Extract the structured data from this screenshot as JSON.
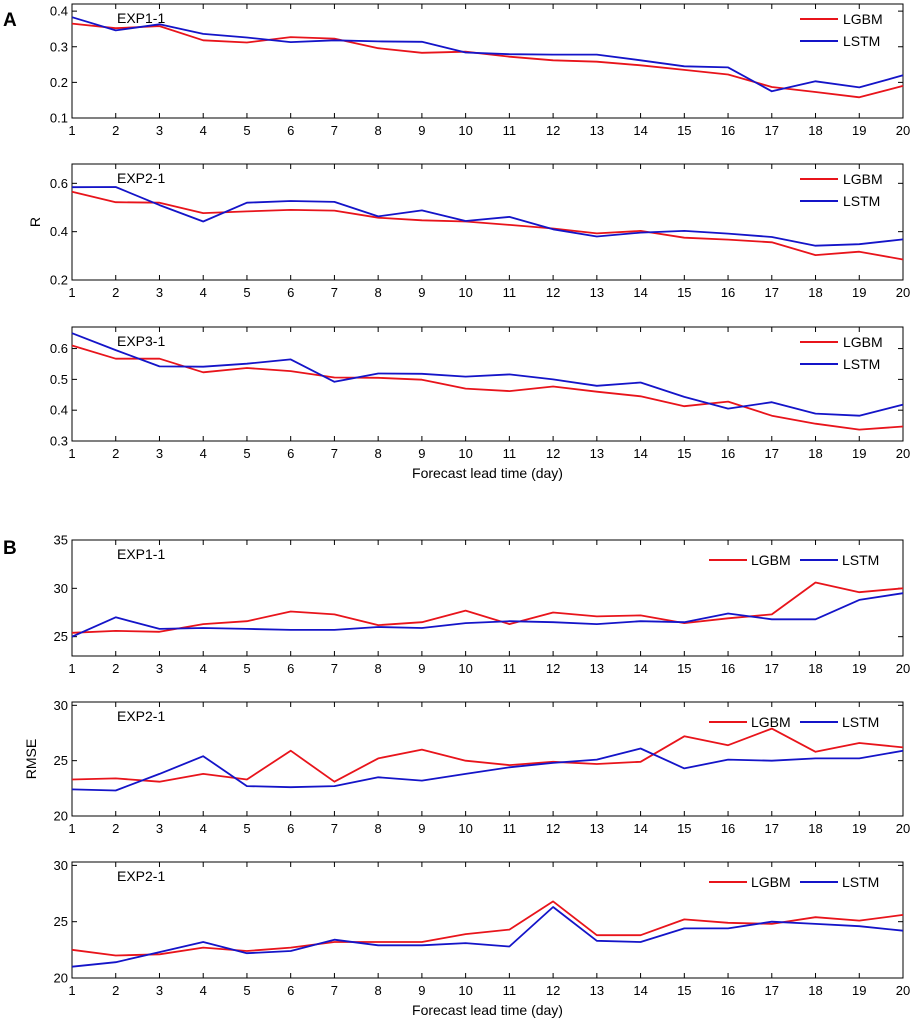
{
  "figure": {
    "panel_a_label": "A",
    "panel_b_label": "B",
    "x_axis_label": "Forecast lead time (day)",
    "colors": {
      "LGBM": "#e8141b",
      "LSTM": "#1414c8"
    }
  },
  "chart_data": [
    {
      "type": "line",
      "panel": "A",
      "subtitle": "EXP1-1",
      "ylabel": "",
      "xlabel": "",
      "ylim": [
        0.1,
        0.42
      ],
      "yticks": [
        0.1,
        0.2,
        0.3,
        0.4
      ],
      "ytick_labels": [
        "0.1",
        "0.2",
        "0.3",
        "0.4"
      ],
      "legend_layout": "vertical",
      "x": [
        1,
        2,
        3,
        4,
        5,
        6,
        7,
        8,
        9,
        10,
        11,
        12,
        13,
        14,
        15,
        16,
        17,
        18,
        19,
        20
      ],
      "xtick_labels": [
        "1",
        "2",
        "3",
        "4",
        "5",
        "6",
        "7",
        "8",
        "9",
        "10",
        "11",
        "12",
        "13",
        "14",
        "15",
        "16",
        "17",
        "18",
        "19",
        "20"
      ],
      "series": [
        {
          "name": "LGBM",
          "values": [
            0.365,
            0.352,
            0.358,
            0.318,
            0.312,
            0.327,
            0.323,
            0.296,
            0.283,
            0.286,
            0.272,
            0.262,
            0.258,
            0.248,
            0.235,
            0.222,
            0.187,
            0.173,
            0.158,
            0.19
          ]
        },
        {
          "name": "LSTM",
          "values": [
            0.383,
            0.346,
            0.363,
            0.336,
            0.326,
            0.313,
            0.318,
            0.315,
            0.314,
            0.284,
            0.279,
            0.278,
            0.278,
            0.262,
            0.245,
            0.242,
            0.175,
            0.203,
            0.186,
            0.22
          ]
        }
      ]
    },
    {
      "type": "line",
      "panel": "A",
      "subtitle": "EXP2-1",
      "ylabel": "R",
      "xlabel": "",
      "ylim": [
        0.2,
        0.68
      ],
      "yticks": [
        0.2,
        0.4,
        0.6
      ],
      "ytick_labels": [
        "0.2",
        "0.4",
        "0.6"
      ],
      "legend_layout": "vertical",
      "x": [
        1,
        2,
        3,
        4,
        5,
        6,
        7,
        8,
        9,
        10,
        11,
        12,
        13,
        14,
        15,
        16,
        17,
        18,
        19,
        20
      ],
      "xtick_labels": [
        "1",
        "2",
        "3",
        "4",
        "5",
        "6",
        "7",
        "8",
        "9",
        "10",
        "11",
        "12",
        "13",
        "14",
        "15",
        "16",
        "17",
        "18",
        "19",
        "20"
      ],
      "series": [
        {
          "name": "LGBM",
          "values": [
            0.565,
            0.522,
            0.52,
            0.477,
            0.484,
            0.49,
            0.487,
            0.458,
            0.447,
            0.442,
            0.428,
            0.413,
            0.393,
            0.403,
            0.375,
            0.367,
            0.356,
            0.303,
            0.317,
            0.285
          ]
        },
        {
          "name": "LSTM",
          "values": [
            0.584,
            0.585,
            0.51,
            0.442,
            0.52,
            0.527,
            0.523,
            0.463,
            0.488,
            0.444,
            0.461,
            0.41,
            0.38,
            0.396,
            0.403,
            0.392,
            0.378,
            0.342,
            0.348,
            0.368
          ]
        }
      ]
    },
    {
      "type": "line",
      "panel": "A",
      "subtitle": "EXP3-1",
      "ylabel": "",
      "xlabel": "Forecast lead time (day)",
      "ylim": [
        0.3,
        0.67
      ],
      "yticks": [
        0.3,
        0.4,
        0.5,
        0.6
      ],
      "ytick_labels": [
        "0.3",
        "0.4",
        "0.5",
        "0.6"
      ],
      "legend_layout": "vertical",
      "x": [
        1,
        2,
        3,
        4,
        5,
        6,
        7,
        8,
        9,
        10,
        11,
        12,
        13,
        14,
        15,
        16,
        17,
        18,
        19,
        20
      ],
      "xtick_labels": [
        "1",
        "2",
        "3",
        "4",
        "5",
        "6",
        "7",
        "8",
        "9",
        "10",
        "11",
        "12",
        "13",
        "14",
        "15",
        "16",
        "17",
        "18",
        "19",
        "20"
      ],
      "series": [
        {
          "name": "LGBM",
          "values": [
            0.61,
            0.567,
            0.567,
            0.523,
            0.537,
            0.527,
            0.506,
            0.505,
            0.499,
            0.47,
            0.462,
            0.477,
            0.46,
            0.445,
            0.413,
            0.428,
            0.382,
            0.356,
            0.337,
            0.347
          ]
        },
        {
          "name": "LSTM",
          "values": [
            0.65,
            0.595,
            0.542,
            0.541,
            0.551,
            0.565,
            0.492,
            0.519,
            0.518,
            0.509,
            0.516,
            0.5,
            0.479,
            0.49,
            0.443,
            0.405,
            0.426,
            0.389,
            0.382,
            0.418
          ]
        }
      ]
    },
    {
      "type": "line",
      "panel": "B",
      "subtitle": "EXP1-1",
      "ylabel": "",
      "xlabel": "",
      "ylim": [
        23,
        35
      ],
      "yticks": [
        25,
        30,
        35
      ],
      "ytick_labels": [
        "25",
        "30",
        "35"
      ],
      "legend_layout": "horizontal",
      "x": [
        1,
        2,
        3,
        4,
        5,
        6,
        7,
        8,
        9,
        10,
        11,
        12,
        13,
        14,
        15,
        16,
        17,
        18,
        19,
        20
      ],
      "xtick_labels": [
        "1",
        "2",
        "3",
        "4",
        "5",
        "6",
        "7",
        "8",
        "9",
        "10",
        "11",
        "12",
        "13",
        "14",
        "15",
        "16",
        "17",
        "18",
        "19",
        "20"
      ],
      "series": [
        {
          "name": "LGBM",
          "values": [
            25.4,
            25.6,
            25.5,
            26.3,
            26.6,
            27.6,
            27.3,
            26.2,
            26.5,
            27.7,
            26.3,
            27.5,
            27.1,
            27.2,
            26.4,
            26.9,
            27.3,
            30.6,
            29.6,
            30.0
          ]
        },
        {
          "name": "LSTM",
          "values": [
            25.0,
            27.0,
            25.8,
            25.9,
            25.8,
            25.7,
            25.7,
            26.0,
            25.9,
            26.4,
            26.6,
            26.5,
            26.3,
            26.6,
            26.5,
            27.4,
            26.8,
            26.8,
            28.8,
            29.5
          ]
        }
      ]
    },
    {
      "type": "line",
      "panel": "B",
      "subtitle": "EXP2-1",
      "ylabel": "RMSE",
      "xlabel": "",
      "ylim": [
        20,
        30.3
      ],
      "yticks": [
        20,
        25,
        30
      ],
      "ytick_labels": [
        "20",
        "25",
        "30"
      ],
      "legend_layout": "horizontal",
      "x": [
        1,
        2,
        3,
        4,
        5,
        6,
        7,
        8,
        9,
        10,
        11,
        12,
        13,
        14,
        15,
        16,
        17,
        18,
        19,
        20
      ],
      "xtick_labels": [
        "1",
        "2",
        "3",
        "4",
        "5",
        "6",
        "7",
        "8",
        "9",
        "10",
        "11",
        "12",
        "13",
        "14",
        "15",
        "16",
        "17",
        "18",
        "19",
        "20"
      ],
      "series": [
        {
          "name": "LGBM",
          "values": [
            23.3,
            23.4,
            23.1,
            23.8,
            23.3,
            25.9,
            23.1,
            25.2,
            26.0,
            25.0,
            24.6,
            24.9,
            24.7,
            24.9,
            27.2,
            26.4,
            27.9,
            25.8,
            26.6,
            26.2
          ]
        },
        {
          "name": "LSTM",
          "values": [
            22.4,
            22.3,
            23.8,
            25.4,
            22.7,
            22.6,
            22.7,
            23.5,
            23.2,
            23.8,
            24.4,
            24.8,
            25.1,
            26.1,
            24.3,
            25.1,
            25.0,
            25.2,
            25.2,
            25.9
          ]
        }
      ]
    },
    {
      "type": "line",
      "panel": "B",
      "subtitle": "EXP2-1",
      "ylabel": "",
      "xlabel": "Forecast lead time (day)",
      "ylim": [
        20,
        30.3
      ],
      "yticks": [
        20,
        25,
        30
      ],
      "ytick_labels": [
        "20",
        "25",
        "30"
      ],
      "legend_layout": "horizontal",
      "x": [
        1,
        2,
        3,
        4,
        5,
        6,
        7,
        8,
        9,
        10,
        11,
        12,
        13,
        14,
        15,
        16,
        17,
        18,
        19,
        20
      ],
      "xtick_labels": [
        "1",
        "2",
        "3",
        "4",
        "5",
        "6",
        "7",
        "8",
        "9",
        "10",
        "11",
        "12",
        "13",
        "14",
        "15",
        "16",
        "17",
        "18",
        "19",
        "20"
      ],
      "series": [
        {
          "name": "LGBM",
          "values": [
            22.5,
            22.0,
            22.1,
            22.7,
            22.4,
            22.7,
            23.2,
            23.2,
            23.2,
            23.9,
            24.3,
            26.8,
            23.8,
            23.8,
            25.2,
            24.9,
            24.8,
            25.4,
            25.1,
            25.6
          ]
        },
        {
          "name": "LSTM",
          "values": [
            21.0,
            21.4,
            22.3,
            23.2,
            22.2,
            22.4,
            23.4,
            22.9,
            22.9,
            23.1,
            22.8,
            26.3,
            23.3,
            23.2,
            24.4,
            24.4,
            25.0,
            24.8,
            24.6,
            24.2
          ]
        }
      ]
    }
  ]
}
